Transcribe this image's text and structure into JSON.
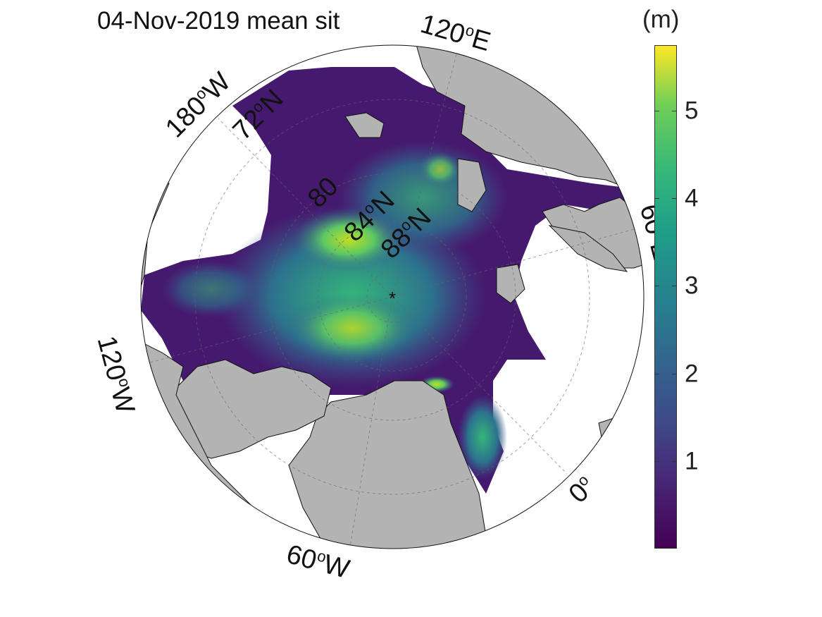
{
  "title": "04-Nov-2019 mean sit",
  "colorbar": {
    "unit": "(m)",
    "ticks": [
      "1",
      "2",
      "3",
      "4",
      "5"
    ],
    "tick_values": [
      1,
      2,
      3,
      4,
      5
    ],
    "range": [
      0,
      5.75
    ],
    "colormap": "viridis"
  },
  "map": {
    "projection": "north-polar-stereographic",
    "center_marker": "*",
    "land_color": "#b3b3b3",
    "ocean_color": "#ffffff",
    "longitude_labels": [
      {
        "deg": "120",
        "suffix": "E"
      },
      {
        "deg": "180",
        "suffix": "W"
      },
      {
        "deg": "120",
        "suffix": "W"
      },
      {
        "deg": "60",
        "suffix": "W"
      },
      {
        "deg": "0",
        "suffix": ""
      },
      {
        "deg": "60",
        "suffix": "E"
      }
    ],
    "latitude_labels": [
      {
        "deg": "72",
        "suffix": "N"
      },
      {
        "deg": "80",
        "suffix": ""
      },
      {
        "deg": "84",
        "suffix": "N"
      },
      {
        "deg": "88",
        "suffix": "N"
      }
    ]
  }
}
